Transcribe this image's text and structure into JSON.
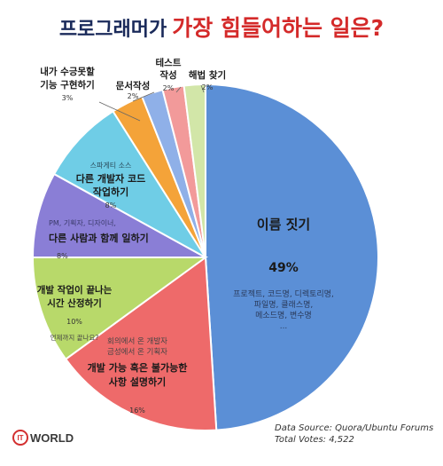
{
  "title": {
    "part1": "프로그래머가",
    "part2": "가장 힘들어하는 일은?"
  },
  "chart_data": {
    "type": "pie",
    "slices": [
      {
        "label": "이름 짓기",
        "value": 49,
        "value_text": "49%",
        "sub": [
          "프로젝트, 코드명, 디렉토리명,",
          "파일명, 클래스명,",
          "메소드명, 변수명",
          "..."
        ],
        "color": "#5b8fd6"
      },
      {
        "label": "개발 가능 혹은 불가능한 사항 설명하기",
        "value": 16,
        "value_text": "16%",
        "sub": [
          "회의에서 온 개발자",
          "금성에서 온 기획자"
        ],
        "color": "#ee6a6a"
      },
      {
        "label": "개발 작업이 끝나는 시간 산정하기",
        "value": 10,
        "value_text": "10%",
        "sub": [
          "언제까지 끝나요?"
        ],
        "color": "#b8d96a"
      },
      {
        "label": "다른 사람과 함께 일하기",
        "value": 8,
        "value_text": "8%",
        "sub": [
          "PM, 기획자, 디자이너,"
        ],
        "color": "#8a7ed6"
      },
      {
        "label": "다른 개발자 코드 작업하기",
        "value": 8,
        "value_text": "8%",
        "sub": [
          "스파게티 소스"
        ],
        "color": "#6fcde6"
      },
      {
        "label": "내가 수긍못할 기능 구현하기",
        "value": 3,
        "value_text": "3%",
        "sub": [],
        "color": "#f4a339"
      },
      {
        "label": "문서작성",
        "value": 2,
        "value_text": "2%",
        "sub": [],
        "color": "#8fb0e8"
      },
      {
        "label": "테스트 작성",
        "value": 2,
        "value_text": "2%",
        "sub": [],
        "color": "#f29a9a"
      },
      {
        "label": "해법 찾기",
        "value": 2,
        "value_text": "2%",
        "sub": [],
        "color": "#d2e6a8"
      }
    ]
  },
  "footer": {
    "source": "Data Source: Quora/Ubuntu Forums",
    "votes": "Total Votes: 4,522"
  },
  "logo": {
    "mark": "IT",
    "text": "WORLD"
  }
}
